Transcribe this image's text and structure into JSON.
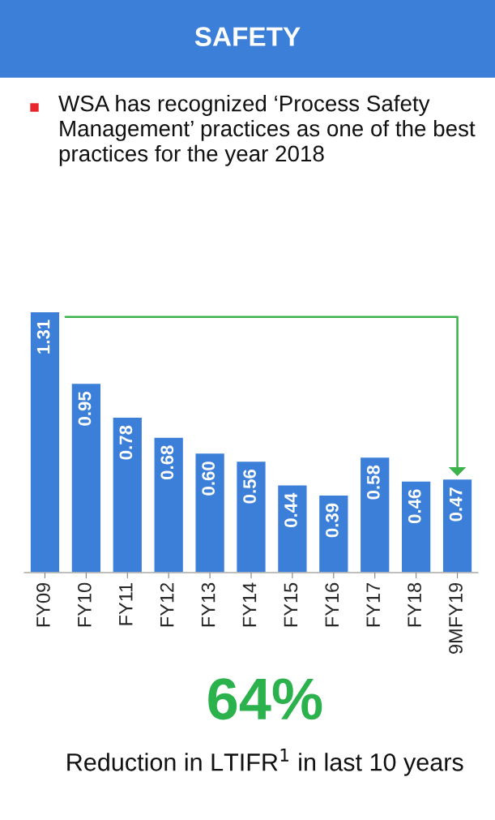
{
  "chart_data": {
    "type": "bar",
    "title": "SAFETY",
    "subtitle": "WSA has recognized ‘Process Safety Management’ practices as one of the best practices for the year 2018",
    "categories": [
      "FY09",
      "FY10",
      "FY11",
      "FY12",
      "FY13",
      "FY14",
      "FY15",
      "FY16",
      "FY17",
      "FY18",
      "9MFY19"
    ],
    "values": [
      1.31,
      0.95,
      0.78,
      0.68,
      0.6,
      0.56,
      0.44,
      0.39,
      0.58,
      0.46,
      0.47
    ],
    "color": "#3c7fd9",
    "value_labels": [
      "1.31",
      "0.95",
      "0.78",
      "0.68",
      "0.60",
      "0.56",
      "0.44",
      "0.39",
      "0.58",
      "0.46",
      "0.47"
    ],
    "annotations": [
      "64%",
      "Reduction in LTIFR$^{1}$ in last 10 years"
    ]
  }
}
